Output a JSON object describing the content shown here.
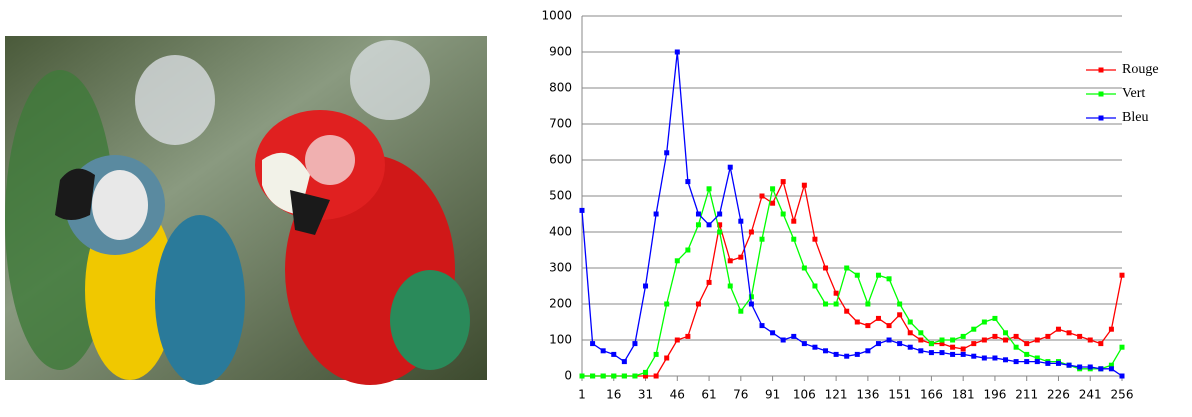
{
  "chart_data": {
    "type": "line",
    "x": [
      1,
      6,
      11,
      16,
      21,
      26,
      31,
      36,
      41,
      46,
      51,
      56,
      61,
      66,
      71,
      76,
      81,
      86,
      91,
      96,
      101,
      106,
      111,
      116,
      121,
      126,
      131,
      136,
      141,
      146,
      151,
      156,
      161,
      166,
      171,
      176,
      181,
      186,
      191,
      196,
      201,
      206,
      211,
      216,
      221,
      226,
      231,
      236,
      241,
      246,
      251,
      256
    ],
    "series": [
      {
        "name": "Rouge",
        "color": "#ff0000",
        "values": [
          0,
          0,
          0,
          0,
          0,
          0,
          0,
          0,
          50,
          100,
          110,
          200,
          260,
          420,
          320,
          330,
          400,
          500,
          480,
          540,
          430,
          530,
          380,
          300,
          230,
          180,
          150,
          140,
          160,
          140,
          170,
          120,
          100,
          90,
          90,
          80,
          75,
          90,
          100,
          110,
          100,
          110,
          90,
          100,
          110,
          130,
          120,
          110,
          100,
          90,
          130,
          280
        ]
      },
      {
        "name": "Vert",
        "color": "#00ff00",
        "values": [
          0,
          0,
          0,
          0,
          0,
          0,
          10,
          60,
          200,
          320,
          350,
          420,
          520,
          400,
          250,
          180,
          220,
          380,
          520,
          450,
          380,
          300,
          250,
          200,
          200,
          300,
          280,
          200,
          280,
          270,
          200,
          150,
          120,
          90,
          100,
          100,
          110,
          130,
          150,
          160,
          120,
          80,
          60,
          50,
          40,
          40,
          30,
          20,
          20,
          20,
          30,
          80
        ]
      },
      {
        "name": "Bleu",
        "color": "#0000ff",
        "values": [
          460,
          90,
          70,
          60,
          40,
          90,
          250,
          450,
          620,
          900,
          540,
          450,
          420,
          450,
          580,
          430,
          200,
          140,
          120,
          100,
          110,
          90,
          80,
          70,
          60,
          55,
          60,
          70,
          90,
          100,
          90,
          80,
          70,
          65,
          65,
          60,
          60,
          55,
          50,
          50,
          45,
          40,
          40,
          40,
          35,
          35,
          30,
          25,
          25,
          20,
          20,
          0
        ]
      }
    ],
    "xlim": [
      1,
      256
    ],
    "xticks": [
      1,
      16,
      31,
      46,
      61,
      76,
      91,
      106,
      121,
      136,
      151,
      166,
      181,
      196,
      211,
      226,
      241,
      256
    ],
    "ylim": [
      0,
      1000
    ],
    "yticks": [
      0,
      100,
      200,
      300,
      400,
      500,
      600,
      700,
      800,
      900,
      1000
    ],
    "grid": true,
    "legend": "upper right"
  }
}
